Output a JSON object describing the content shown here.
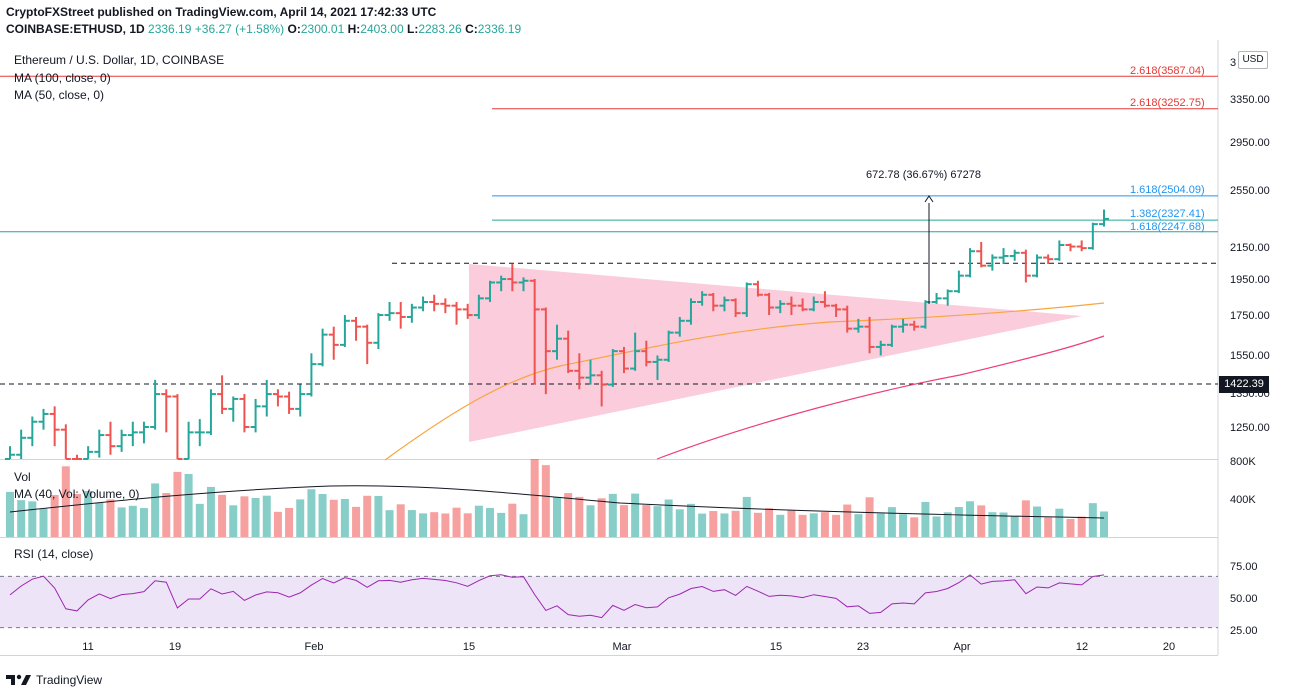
{
  "header": {
    "line1": "CryptoFXStreet published on TradingView.com, April 14, 2021 17:42:33 UTC",
    "symbol": "COINBASE:ETHUSD, 1D",
    "last": "2336.19",
    "change": "+36.27 (+1.58%)",
    "o_label": "O:",
    "o": "2300.01",
    "h_label": "H:",
    "h": "2403.00",
    "l_label": "L:",
    "l": "2283.26",
    "c_label": "C:",
    "c": "2336.19"
  },
  "legend": {
    "title": "Ethereum / U.S. Dollar, 1D, COINBASE",
    "ma100": "MA (100, close, 0)",
    "ma50": "MA (50, close, 0)",
    "vol": "Vol",
    "vol_ma": "MA (40, Vol: Volume, 0)",
    "rsi": "RSI (14, close)"
  },
  "axis": {
    "currency": "USD",
    "last_price_tag": "1422.39",
    "price_ticks": [
      "3350.00",
      "2950.00",
      "2550.00",
      "2150.00",
      "1950.00",
      "1750.00",
      "1550.00",
      "1350.00",
      "1250.00"
    ],
    "price_top_partial": "3",
    "volume_ticks": [
      "800K",
      "400K"
    ],
    "rsi_ticks": [
      "75.00",
      "50.00",
      "25.00"
    ],
    "date_ticks": [
      "11",
      "19",
      "Feb",
      "15",
      "Mar",
      "15",
      "23",
      "Apr",
      "12",
      "20"
    ]
  },
  "annotations": {
    "measure": "672.78 (36.67%) 67278",
    "fib_3587": "2.618(3587.04)",
    "fib_3252": "2.618(3252.75)",
    "fib_2504": "1.618(2504.09)",
    "fib_2327": "1.382(2327.41)",
    "fib_2247": "1.618(2247.68)"
  },
  "brand": "TradingView",
  "colors": {
    "up": "#26a69a",
    "down": "#ef5350",
    "ma50": "#f7a540",
    "ma100": "#ec407a",
    "fib_red": "#e53935",
    "fib_blue": "#2196f3",
    "fib_teal": "#26a69a",
    "triangle": "#f8bbd0",
    "rsi_line": "#9c27b0",
    "rsi_band": "#ede4f7"
  },
  "chart_data": {
    "type": "ohlc",
    "symbol": "ETHUSD",
    "ylim": [
      1050,
      3700
    ],
    "yscale": "log",
    "levels": [
      3587.04,
      3252.75,
      2504.09,
      2327.41,
      2247.68,
      2045,
      1422.39
    ],
    "bars": [
      [
        "2021-01-06",
        1100,
        1180,
        1040,
        1150
      ],
      [
        "2021-01-07",
        1150,
        1240,
        1130,
        1210
      ],
      [
        "2021-01-08",
        1210,
        1290,
        1180,
        1270
      ],
      [
        "2021-01-09",
        1270,
        1320,
        1240,
        1300
      ],
      [
        "2021-01-10",
        1300,
        1330,
        1180,
        1240
      ],
      [
        "2021-01-11",
        1240,
        1260,
        980,
        1090
      ],
      [
        "2021-01-12",
        1090,
        1150,
        1020,
        1070
      ],
      [
        "2021-01-13",
        1070,
        1180,
        1040,
        1160
      ],
      [
        "2021-01-14",
        1160,
        1240,
        1140,
        1220
      ],
      [
        "2021-01-15",
        1220,
        1270,
        1150,
        1180
      ],
      [
        "2021-01-16",
        1180,
        1240,
        1160,
        1220
      ],
      [
        "2021-01-17",
        1220,
        1270,
        1180,
        1230
      ],
      [
        "2021-01-18",
        1230,
        1270,
        1190,
        1250
      ],
      [
        "2021-01-19",
        1250,
        1440,
        1240,
        1380
      ],
      [
        "2021-01-20",
        1380,
        1400,
        1230,
        1370
      ],
      [
        "2021-01-21",
        1370,
        1380,
        1100,
        1120
      ],
      [
        "2021-01-22",
        1120,
        1270,
        1050,
        1230
      ],
      [
        "2021-01-23",
        1230,
        1280,
        1180,
        1230
      ],
      [
        "2021-01-24",
        1230,
        1400,
        1220,
        1380
      ],
      [
        "2021-01-25",
        1380,
        1460,
        1300,
        1320
      ],
      [
        "2021-01-26",
        1320,
        1370,
        1270,
        1360
      ],
      [
        "2021-01-27",
        1360,
        1380,
        1230,
        1250
      ],
      [
        "2021-01-28",
        1250,
        1360,
        1230,
        1330
      ],
      [
        "2021-01-29",
        1330,
        1440,
        1290,
        1380
      ],
      [
        "2021-01-30",
        1380,
        1400,
        1330,
        1370
      ],
      [
        "2021-01-31",
        1370,
        1390,
        1300,
        1320
      ],
      [
        "2021-02-01",
        1320,
        1420,
        1290,
        1380
      ],
      [
        "2021-02-02",
        1380,
        1560,
        1370,
        1510
      ],
      [
        "2021-02-03",
        1510,
        1680,
        1500,
        1650
      ],
      [
        "2021-02-04",
        1650,
        1690,
        1530,
        1600
      ],
      [
        "2021-02-05",
        1600,
        1750,
        1590,
        1720
      ],
      [
        "2021-02-06",
        1720,
        1740,
        1620,
        1690
      ],
      [
        "2021-02-07",
        1690,
        1700,
        1510,
        1610
      ],
      [
        "2021-02-08",
        1610,
        1760,
        1580,
        1750
      ],
      [
        "2021-02-09",
        1750,
        1820,
        1720,
        1760
      ],
      [
        "2021-02-10",
        1760,
        1820,
        1680,
        1740
      ],
      [
        "2021-02-11",
        1740,
        1810,
        1710,
        1790
      ],
      [
        "2021-02-12",
        1790,
        1850,
        1770,
        1820
      ],
      [
        "2021-02-13",
        1820,
        1860,
        1770,
        1810
      ],
      [
        "2021-02-14",
        1810,
        1840,
        1760,
        1800
      ],
      [
        "2021-02-15",
        1800,
        1820,
        1700,
        1780
      ],
      [
        "2021-02-16",
        1780,
        1810,
        1730,
        1750
      ],
      [
        "2021-02-17",
        1750,
        1860,
        1730,
        1840
      ],
      [
        "2021-02-18",
        1840,
        1940,
        1820,
        1930
      ],
      [
        "2021-02-19",
        1930,
        1970,
        1880,
        1950
      ],
      [
        "2021-02-20",
        1950,
        2040,
        1880,
        1930
      ],
      [
        "2021-02-21",
        1930,
        1960,
        1880,
        1940
      ],
      [
        "2021-02-22",
        1940,
        1950,
        1420,
        1780
      ],
      [
        "2021-02-23",
        1780,
        1790,
        1380,
        1570
      ],
      [
        "2021-02-24",
        1570,
        1700,
        1530,
        1630
      ],
      [
        "2021-02-25",
        1630,
        1670,
        1470,
        1480
      ],
      [
        "2021-02-26",
        1480,
        1560,
        1400,
        1450
      ],
      [
        "2021-02-27",
        1450,
        1530,
        1420,
        1460
      ],
      [
        "2021-02-28",
        1460,
        1480,
        1330,
        1420
      ],
      [
        "2021-03-01",
        1420,
        1580,
        1410,
        1570
      ],
      [
        "2021-03-02",
        1570,
        1590,
        1470,
        1490
      ],
      [
        "2021-03-03",
        1490,
        1660,
        1480,
        1570
      ],
      [
        "2021-03-04",
        1570,
        1620,
        1500,
        1520
      ],
      [
        "2021-03-05",
        1520,
        1550,
        1440,
        1530
      ],
      [
        "2021-03-06",
        1530,
        1670,
        1520,
        1660
      ],
      [
        "2021-03-07",
        1660,
        1740,
        1640,
        1720
      ],
      [
        "2021-03-08",
        1720,
        1840,
        1700,
        1820
      ],
      [
        "2021-03-09",
        1820,
        1880,
        1800,
        1860
      ],
      [
        "2021-03-10",
        1860,
        1870,
        1770,
        1800
      ],
      [
        "2021-03-11",
        1800,
        1850,
        1770,
        1830
      ],
      [
        "2021-03-12",
        1830,
        1840,
        1740,
        1760
      ],
      [
        "2021-03-13",
        1760,
        1930,
        1740,
        1920
      ],
      [
        "2021-03-14",
        1920,
        1940,
        1850,
        1860
      ],
      [
        "2021-03-15",
        1860,
        1870,
        1750,
        1790
      ],
      [
        "2021-03-16",
        1790,
        1830,
        1760,
        1810
      ],
      [
        "2021-03-17",
        1810,
        1850,
        1750,
        1800
      ],
      [
        "2021-03-18",
        1800,
        1840,
        1770,
        1780
      ],
      [
        "2021-03-19",
        1780,
        1850,
        1770,
        1820
      ],
      [
        "2021-03-20",
        1820,
        1880,
        1790,
        1800
      ],
      [
        "2021-03-21",
        1800,
        1810,
        1740,
        1780
      ],
      [
        "2021-03-22",
        1780,
        1800,
        1660,
        1680
      ],
      [
        "2021-03-23",
        1680,
        1730,
        1660,
        1690
      ],
      [
        "2021-03-24",
        1690,
        1740,
        1560,
        1590
      ],
      [
        "2021-03-25",
        1590,
        1620,
        1550,
        1600
      ],
      [
        "2021-03-26",
        1600,
        1700,
        1590,
        1690
      ],
      [
        "2021-03-27",
        1690,
        1730,
        1660,
        1700
      ],
      [
        "2021-03-28",
        1700,
        1720,
        1670,
        1690
      ],
      [
        "2021-03-29",
        1690,
        1830,
        1680,
        1820
      ],
      [
        "2021-03-30",
        1820,
        1870,
        1810,
        1840
      ],
      [
        "2021-03-31",
        1840,
        1890,
        1800,
        1880
      ],
      [
        "2021-04-01",
        1880,
        2000,
        1870,
        1970
      ],
      [
        "2021-04-02",
        1970,
        2140,
        1960,
        2120
      ],
      [
        "2021-04-03",
        2120,
        2180,
        2020,
        2030
      ],
      [
        "2021-04-04",
        2030,
        2100,
        2000,
        2080
      ],
      [
        "2021-04-05",
        2080,
        2140,
        2040,
        2090
      ],
      [
        "2021-04-06",
        2090,
        2130,
        2060,
        2110
      ],
      [
        "2021-04-07",
        2110,
        2130,
        1930,
        1970
      ],
      [
        "2021-04-08",
        1970,
        2100,
        1960,
        2080
      ],
      [
        "2021-04-09",
        2080,
        2100,
        2040,
        2070
      ],
      [
        "2021-04-10",
        2070,
        2190,
        2060,
        2160
      ],
      [
        "2021-04-11",
        2160,
        2170,
        2120,
        2150
      ],
      [
        "2021-04-12",
        2150,
        2190,
        2120,
        2140
      ],
      [
        "2021-04-13",
        2140,
        2310,
        2130,
        2300
      ],
      [
        "2021-04-14",
        2300.01,
        2403,
        2283.26,
        2336.19
      ]
    ]
  }
}
